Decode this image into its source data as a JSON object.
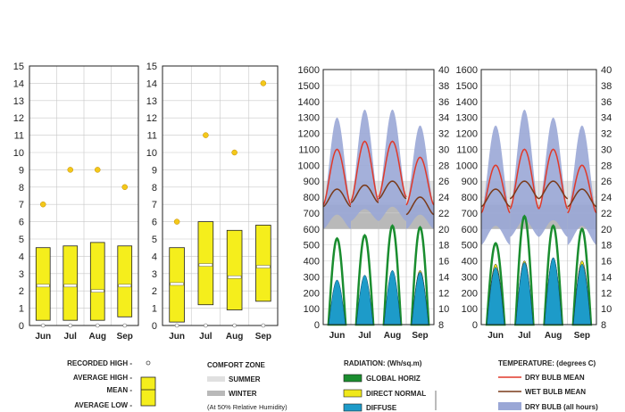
{
  "chart_data": [
    {
      "type": "bar",
      "categories": [
        "Jun",
        "Jul",
        "Aug",
        "Sep"
      ],
      "ylim": [
        0,
        15
      ],
      "ticks": [
        0,
        1,
        2,
        3,
        4,
        5,
        6,
        7,
        8,
        9,
        10,
        11,
        12,
        13,
        14,
        15
      ],
      "recorded_high": [
        7.0,
        9.0,
        9.0,
        8.0
      ],
      "average_high": [
        4.5,
        4.6,
        4.8,
        4.6
      ],
      "mean": [
        2.3,
        2.3,
        2.0,
        2.3
      ],
      "average_low": [
        0.3,
        0.3,
        0.3,
        0.5
      ]
    },
    {
      "type": "bar",
      "categories": [
        "Jun",
        "Jul",
        "Aug",
        "Sep"
      ],
      "ylim": [
        0,
        15
      ],
      "ticks": [
        0,
        1,
        2,
        3,
        4,
        5,
        6,
        7,
        8,
        9,
        10,
        11,
        12,
        13,
        14,
        15
      ],
      "recorded_high": [
        6.0,
        11.0,
        10.0,
        14.0
      ],
      "average_high": [
        4.5,
        6.0,
        5.5,
        5.8
      ],
      "mean": [
        2.4,
        3.5,
        2.8,
        3.4
      ],
      "average_low": [
        0.2,
        1.2,
        0.9,
        1.4
      ]
    },
    {
      "type": "area",
      "categories": [
        "Jun",
        "Jul",
        "Aug",
        "Sep"
      ],
      "radiation_ylim": [
        0,
        1600
      ],
      "radiation_ticks": [
        0,
        100,
        200,
        300,
        400,
        500,
        600,
        700,
        800,
        900,
        1000,
        1100,
        1200,
        1300,
        1400,
        1500,
        1600
      ],
      "temperature_ylim": [
        8,
        40
      ],
      "temperature_ticks": [
        8,
        10,
        12,
        14,
        16,
        18,
        20,
        22,
        24,
        26,
        28,
        30,
        32,
        34,
        36,
        38,
        40
      ],
      "comfort_summer": [
        23,
        26
      ],
      "comfort_winter": [
        20,
        23.5
      ],
      "global_horiz_peak": [
        540,
        560,
        620,
        610
      ],
      "direct_normal_peak": [
        260,
        300,
        320,
        340
      ],
      "diffuse_peak": [
        280,
        310,
        340,
        330
      ],
      "dry_bulb_mean_peak": [
        30,
        31,
        31,
        29
      ],
      "dry_bulb_mean_low": [
        23,
        23.5,
        24,
        23
      ],
      "wet_bulb_mean": [
        24,
        24.5,
        25,
        23
      ],
      "dry_bulb_all_max": [
        34,
        35,
        35,
        33
      ],
      "dry_bulb_all_min": [
        20,
        21,
        21,
        20
      ]
    },
    {
      "type": "area",
      "categories": [
        "Jun",
        "Jul",
        "Aug",
        "Sep"
      ],
      "radiation_ylim": [
        0,
        1600
      ],
      "radiation_ticks": [
        0,
        100,
        200,
        300,
        400,
        500,
        600,
        700,
        800,
        900,
        1000,
        1100,
        1200,
        1300,
        1400,
        1500,
        1600
      ],
      "temperature_ylim": [
        8,
        40
      ],
      "temperature_ticks": [
        8,
        10,
        12,
        14,
        16,
        18,
        20,
        22,
        24,
        26,
        28,
        30,
        32,
        34,
        36,
        38,
        40
      ],
      "comfort_summer": [
        23,
        26
      ],
      "comfort_winter": [
        20,
        23.5
      ],
      "global_horiz_peak": [
        510,
        680,
        620,
        600
      ],
      "direct_normal_peak": [
        380,
        400,
        420,
        400
      ],
      "diffuse_peak": [
        360,
        390,
        420,
        380
      ],
      "dry_bulb_mean_peak": [
        28,
        30,
        30,
        28
      ],
      "dry_bulb_mean_low": [
        22,
        22.5,
        22.5,
        22
      ],
      "wet_bulb_mean": [
        24,
        25,
        25,
        24
      ],
      "dry_bulb_all_max": [
        33,
        35,
        34,
        33
      ],
      "dry_bulb_all_min": [
        18,
        19,
        19,
        18
      ]
    }
  ],
  "legend": {
    "recorded_high": "RECORDED HIGH -",
    "average_high": "AVERAGE HIGH -",
    "mean": "MEAN -",
    "average_low": "AVERAGE LOW -",
    "comfort_title": "COMFORT ZONE",
    "summer": "SUMMER",
    "winter": "WINTER",
    "humidity_note": "(At 50% Relative Humidity)",
    "radiation_title": "RADIATION: (Wh/sq.m)",
    "global_horiz": "GLOBAL HORIZ",
    "direct_normal": "DIRECT NORMAL",
    "diffuse": "DIFFUSE",
    "temperature_title": "TEMPERATURE: (degrees C)",
    "dry_bulb_mean": "DRY BULB MEAN",
    "wet_bulb_mean": "WET BULB MEAN",
    "dry_bulb_all": "DRY BULB (all hours)"
  },
  "colors": {
    "bar_fill": "#f5ee1c",
    "dot": "#f3c81a",
    "global": "#1a8d2f",
    "direct": "#f0e81a",
    "diffuse": "#1d9bc9",
    "dry_band": "#9aa7d6",
    "dry_mean": "#e0392a",
    "wet_mean": "#7a3a1a",
    "summer": "#e0e0e0",
    "winter": "#b9b9b9"
  }
}
